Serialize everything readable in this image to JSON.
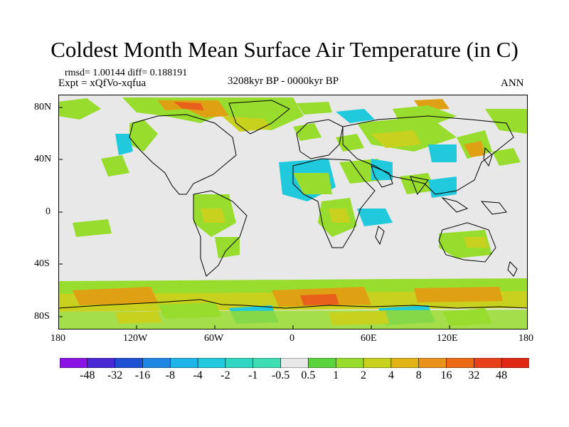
{
  "title": "Coldest Month Mean Surface Air Temperature (in C)",
  "stats_text": "rmsd= 1.00144 diff= 0.188191",
  "experiment_text": "Expt = xQfVo-xqfua",
  "period_text": "3208kyr BP - 0000kyr BP",
  "season_text": "ANN",
  "lat_ticks": [
    "80N",
    "40N",
    "0",
    "40S",
    "80S"
  ],
  "lon_ticks": [
    "180",
    "120W",
    "60W",
    "0",
    "60E",
    "120E",
    "180"
  ],
  "colorbar_labels": [
    "-48",
    "-32",
    "-16",
    "-8",
    "-4",
    "-2",
    "-1",
    "-0.5",
    "0.5",
    "1",
    "2",
    "4",
    "8",
    "16",
    "32",
    "48"
  ],
  "colorbar_colors": [
    "#8a14e6",
    "#4a28d6",
    "#1f4fd2",
    "#1f86e3",
    "#1eb4e8",
    "#20c9dc",
    "#2fd6c2",
    "#3fddb3",
    "#e8e8e8",
    "#5ad43c",
    "#98dc2e",
    "#c8d21e",
    "#e0b414",
    "#e8921c",
    "#ec6a14",
    "#e8401c",
    "#e02814"
  ],
  "colors": {
    "background": "#e8e8e8",
    "coastline": "#000000",
    "positive_light": "#98dc2e",
    "positive_mid": "#c8d21e",
    "positive_strong": "#e0a014",
    "positive_hot": "#e8601c",
    "negative_light": "#20c9dc"
  }
}
